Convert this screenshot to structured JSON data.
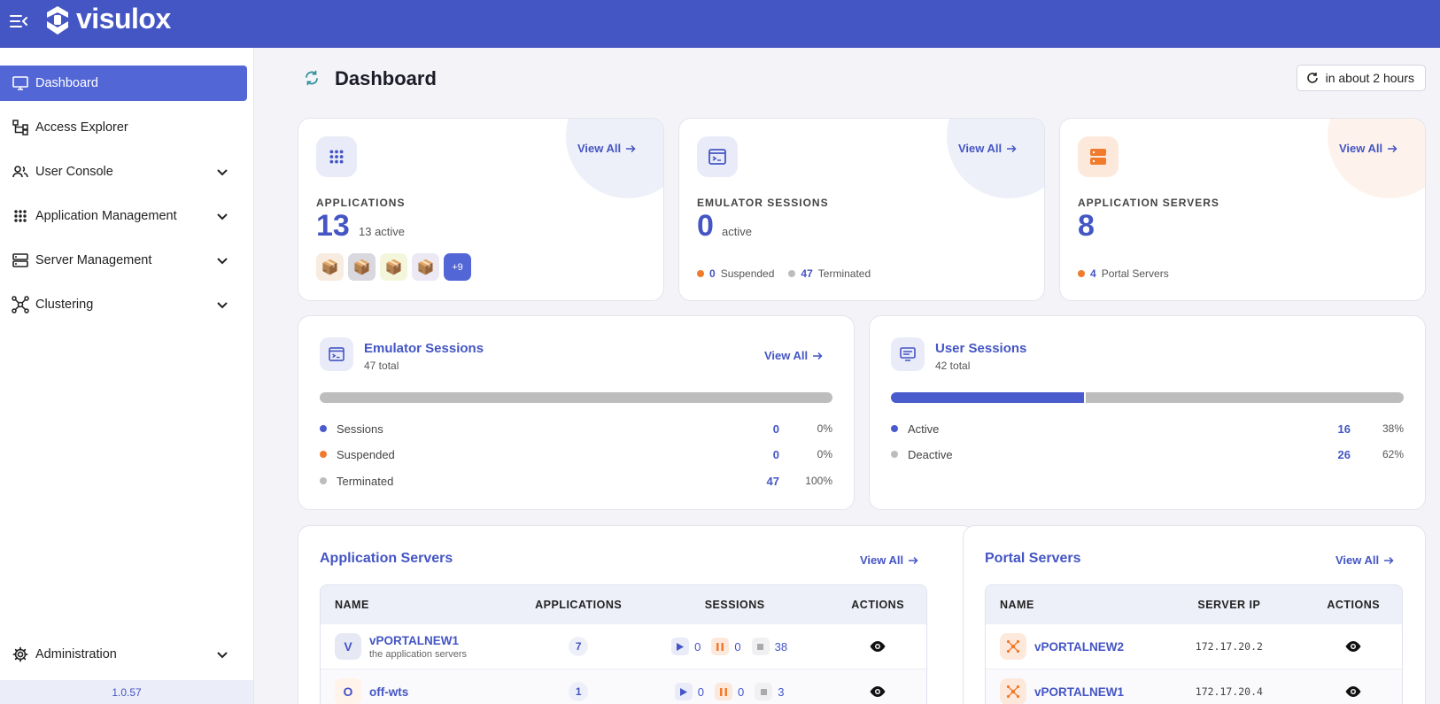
{
  "app": {
    "brand": "visulox",
    "version": "1.0.57"
  },
  "sidebar": {
    "items": [
      {
        "label": "Dashboard"
      },
      {
        "label": "Access Explorer"
      },
      {
        "label": "User Console"
      },
      {
        "label": "Application Management"
      },
      {
        "label": "Server Management"
      },
      {
        "label": "Clustering"
      }
    ],
    "admin": {
      "label": "Administration"
    }
  },
  "header": {
    "title": "Dashboard",
    "refresh_label": "in about 2 hours"
  },
  "cards": {
    "applications": {
      "label": "APPLICATIONS",
      "value": "13",
      "sub": "13 active",
      "view_all": "View All",
      "more": "+9"
    },
    "emulator": {
      "label": "EMULATOR SESSIONS",
      "value": "0",
      "sub": "active",
      "view_all": "View All",
      "suspended_count": "0",
      "suspended_label": "Suspended",
      "terminated_count": "47",
      "terminated_label": "Terminated"
    },
    "servers": {
      "label": "APPLICATION SERVERS",
      "value": "8",
      "view_all": "View All",
      "portal_count": "4",
      "portal_label": "Portal Servers"
    }
  },
  "emulator_sessions": {
    "title": "Emulator Sessions",
    "total": "47 total",
    "view_all": "View All",
    "active_fraction": 0,
    "rows": [
      {
        "label": "Sessions",
        "value": "0",
        "pct": "0%"
      },
      {
        "label": "Suspended",
        "value": "0",
        "pct": "0%"
      },
      {
        "label": "Terminated",
        "value": "47",
        "pct": "100%"
      }
    ]
  },
  "user_sessions": {
    "title": "User Sessions",
    "total": "42 total",
    "active_fraction": 0.38,
    "rows": [
      {
        "label": "Active",
        "value": "16",
        "pct": "38%"
      },
      {
        "label": "Deactive",
        "value": "26",
        "pct": "62%"
      }
    ]
  },
  "app_servers": {
    "title": "Application Servers",
    "view_all": "View All",
    "columns": [
      "NAME",
      "APPLICATIONS",
      "SESSIONS",
      "ACTIONS"
    ],
    "rows": [
      {
        "initial": "V",
        "name": "vPORTALNEW1",
        "desc": "the application servers",
        "apps": "7",
        "running": "0",
        "paused": "0",
        "stopped": "38"
      },
      {
        "initial": "O",
        "name": "off-wts",
        "desc": "",
        "apps": "1",
        "running": "0",
        "paused": "0",
        "stopped": "3"
      }
    ]
  },
  "portal_servers": {
    "title": "Portal Servers",
    "view_all": "View All",
    "columns": [
      "NAME",
      "SERVER IP",
      "ACTIONS"
    ],
    "rows": [
      {
        "name": "vPORTALNEW2",
        "ip": "172.17.20.2"
      },
      {
        "name": "vPORTALNEW1",
        "ip": "172.17.20.4"
      }
    ]
  },
  "colors": {
    "brand": "#4455c4",
    "active_nav": "#5366d6",
    "orange": "#f07b2c",
    "grey": "#bdbdbd"
  }
}
